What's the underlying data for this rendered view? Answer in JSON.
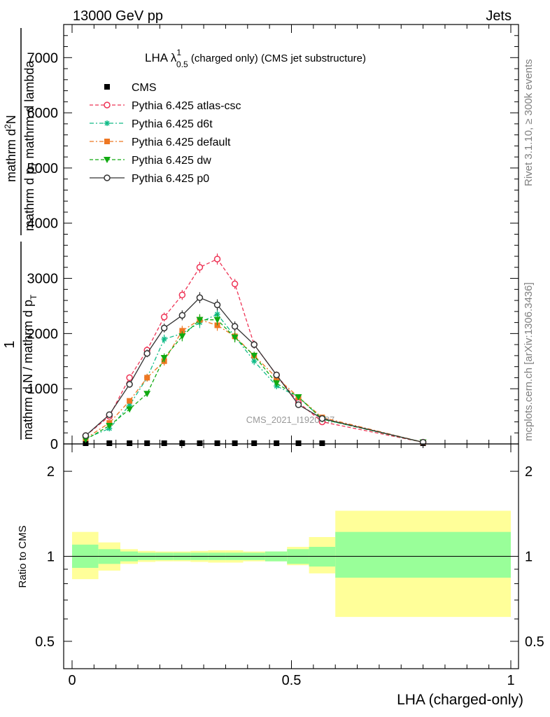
{
  "header": {
    "left": "13000 GeV pp",
    "right": "Jets"
  },
  "side_labels": {
    "rivet": "Rivet 3.1.10, ≥ 300k events",
    "mcplots": "mcplots.cern.ch [arXiv:1306.3436]"
  },
  "watermark": "CMS_2021_I1920187",
  "chart_data": [
    {
      "type": "scatter",
      "title_main": "LHA λ",
      "title_sup": "1",
      "title_sub": "0.5",
      "title_rest": " (charged only) (CMS jet substructure)",
      "ylabel": "1 / mathrm d N / mathrm d p_T mathrm d N / mathrm d lambda mathrm d p_T",
      "ylabel_parts": {
        "one": "1",
        "den": "mathrm d N / mathrm d p",
        "den_sub": "T",
        "num_top": "mathrm d",
        "num_sup": "2",
        "num_N": "N",
        "num_bottom": "mathrm d p",
        "num_bottom_sub": "T",
        "num_bottom_rest": " mathrm d lambda"
      },
      "ylim": [
        0,
        7600
      ],
      "xlim": [
        -0.02,
        1.0
      ],
      "yticks": [
        0,
        1000,
        2000,
        3000,
        4000,
        5000,
        6000,
        7000
      ],
      "ytick_labels": [
        "0",
        "1000",
        "2000",
        "3000",
        "4000",
        "5000",
        "6000",
        "7000"
      ],
      "legend_position": "top-left",
      "x": [
        0.031,
        0.085,
        0.131,
        0.171,
        0.21,
        0.251,
        0.291,
        0.331,
        0.371,
        0.415,
        0.466,
        0.516,
        0.57,
        0.8
      ],
      "series": [
        {
          "name": "CMS",
          "color": "#000000",
          "marker": "square",
          "line": "none",
          "values": [
            0,
            0,
            0,
            0,
            0,
            0,
            0,
            0,
            0,
            0,
            0,
            0,
            0,
            0
          ]
        },
        {
          "name": "Pythia 6.425 atlas-csc",
          "color": "#ee3355",
          "marker": "open-circle",
          "line": "dashed",
          "values": [
            150,
            500,
            1200,
            1700,
            2300,
            2700,
            3200,
            3350,
            2900,
            1800,
            1250,
            750,
            400,
            30
          ]
        },
        {
          "name": "Pythia 6.425 d6t",
          "color": "#11bb88",
          "marker": "star",
          "line": "dashdot",
          "values": [
            100,
            280,
            700,
            1200,
            1900,
            2000,
            2200,
            2350,
            1950,
            1500,
            1050,
            850,
            450,
            30
          ]
        },
        {
          "name": "Pythia 6.425 default",
          "color": "#ee7722",
          "marker": "square",
          "line": "dashdot",
          "values": [
            100,
            380,
            780,
            1200,
            1500,
            2050,
            2250,
            2150,
            1950,
            1600,
            1200,
            850,
            480,
            30
          ]
        },
        {
          "name": "Pythia 6.425 dw",
          "color": "#11aa11",
          "marker": "triangle-down",
          "line": "dashed",
          "values": [
            80,
            330,
            630,
            910,
            1560,
            1950,
            2250,
            2250,
            1930,
            1600,
            1100,
            850,
            450,
            30
          ]
        },
        {
          "name": "Pythia 6.425 p0",
          "color": "#333333",
          "marker": "open-circle",
          "line": "solid",
          "values": [
            150,
            530,
            1080,
            1640,
            2100,
            2330,
            2650,
            2520,
            2130,
            1800,
            1250,
            710,
            460,
            30
          ]
        }
      ],
      "errors": [
        20,
        50,
        60,
        70,
        80,
        90,
        100,
        100,
        90,
        70,
        60,
        50,
        30,
        10
      ]
    },
    {
      "type": "area",
      "ylabel": "Ratio to CMS",
      "xlabel": "LHA (charged-only)",
      "ylim": [
        0.4,
        2.5
      ],
      "log_y": true,
      "yticks": [
        0.5,
        1,
        2
      ],
      "ytick_labels": [
        "0.5",
        "1",
        "2"
      ],
      "xticks": [
        0,
        0.5,
        1
      ],
      "xtick_labels": [
        "0",
        "0.5",
        "1"
      ],
      "bin_edges": [
        0.0,
        0.06,
        0.11,
        0.15,
        0.19,
        0.23,
        0.27,
        0.31,
        0.35,
        0.39,
        0.44,
        0.49,
        0.54,
        0.6,
        1.0
      ],
      "band_inner": [
        [
          0.91,
          1.1
        ],
        [
          0.94,
          1.06
        ],
        [
          0.96,
          1.04
        ],
        [
          0.97,
          1.03
        ],
        [
          0.97,
          1.03
        ],
        [
          0.97,
          1.03
        ],
        [
          0.97,
          1.03
        ],
        [
          0.97,
          1.03
        ],
        [
          0.97,
          1.03
        ],
        [
          0.97,
          1.03
        ],
        [
          0.96,
          1.04
        ],
        [
          0.94,
          1.06
        ],
        [
          0.92,
          1.08
        ],
        [
          0.84,
          1.22
        ]
      ],
      "band_outer": [
        [
          0.83,
          1.22
        ],
        [
          0.89,
          1.12
        ],
        [
          0.94,
          1.06
        ],
        [
          0.955,
          1.045
        ],
        [
          0.96,
          1.04
        ],
        [
          0.96,
          1.04
        ],
        [
          0.955,
          1.045
        ],
        [
          0.95,
          1.05
        ],
        [
          0.95,
          1.05
        ],
        [
          0.96,
          1.04
        ],
        [
          0.96,
          1.04
        ],
        [
          0.93,
          1.08
        ],
        [
          0.87,
          1.17
        ],
        [
          0.61,
          1.45
        ]
      ],
      "inner_color": "#99ff99",
      "outer_color": "#ffff99"
    }
  ]
}
